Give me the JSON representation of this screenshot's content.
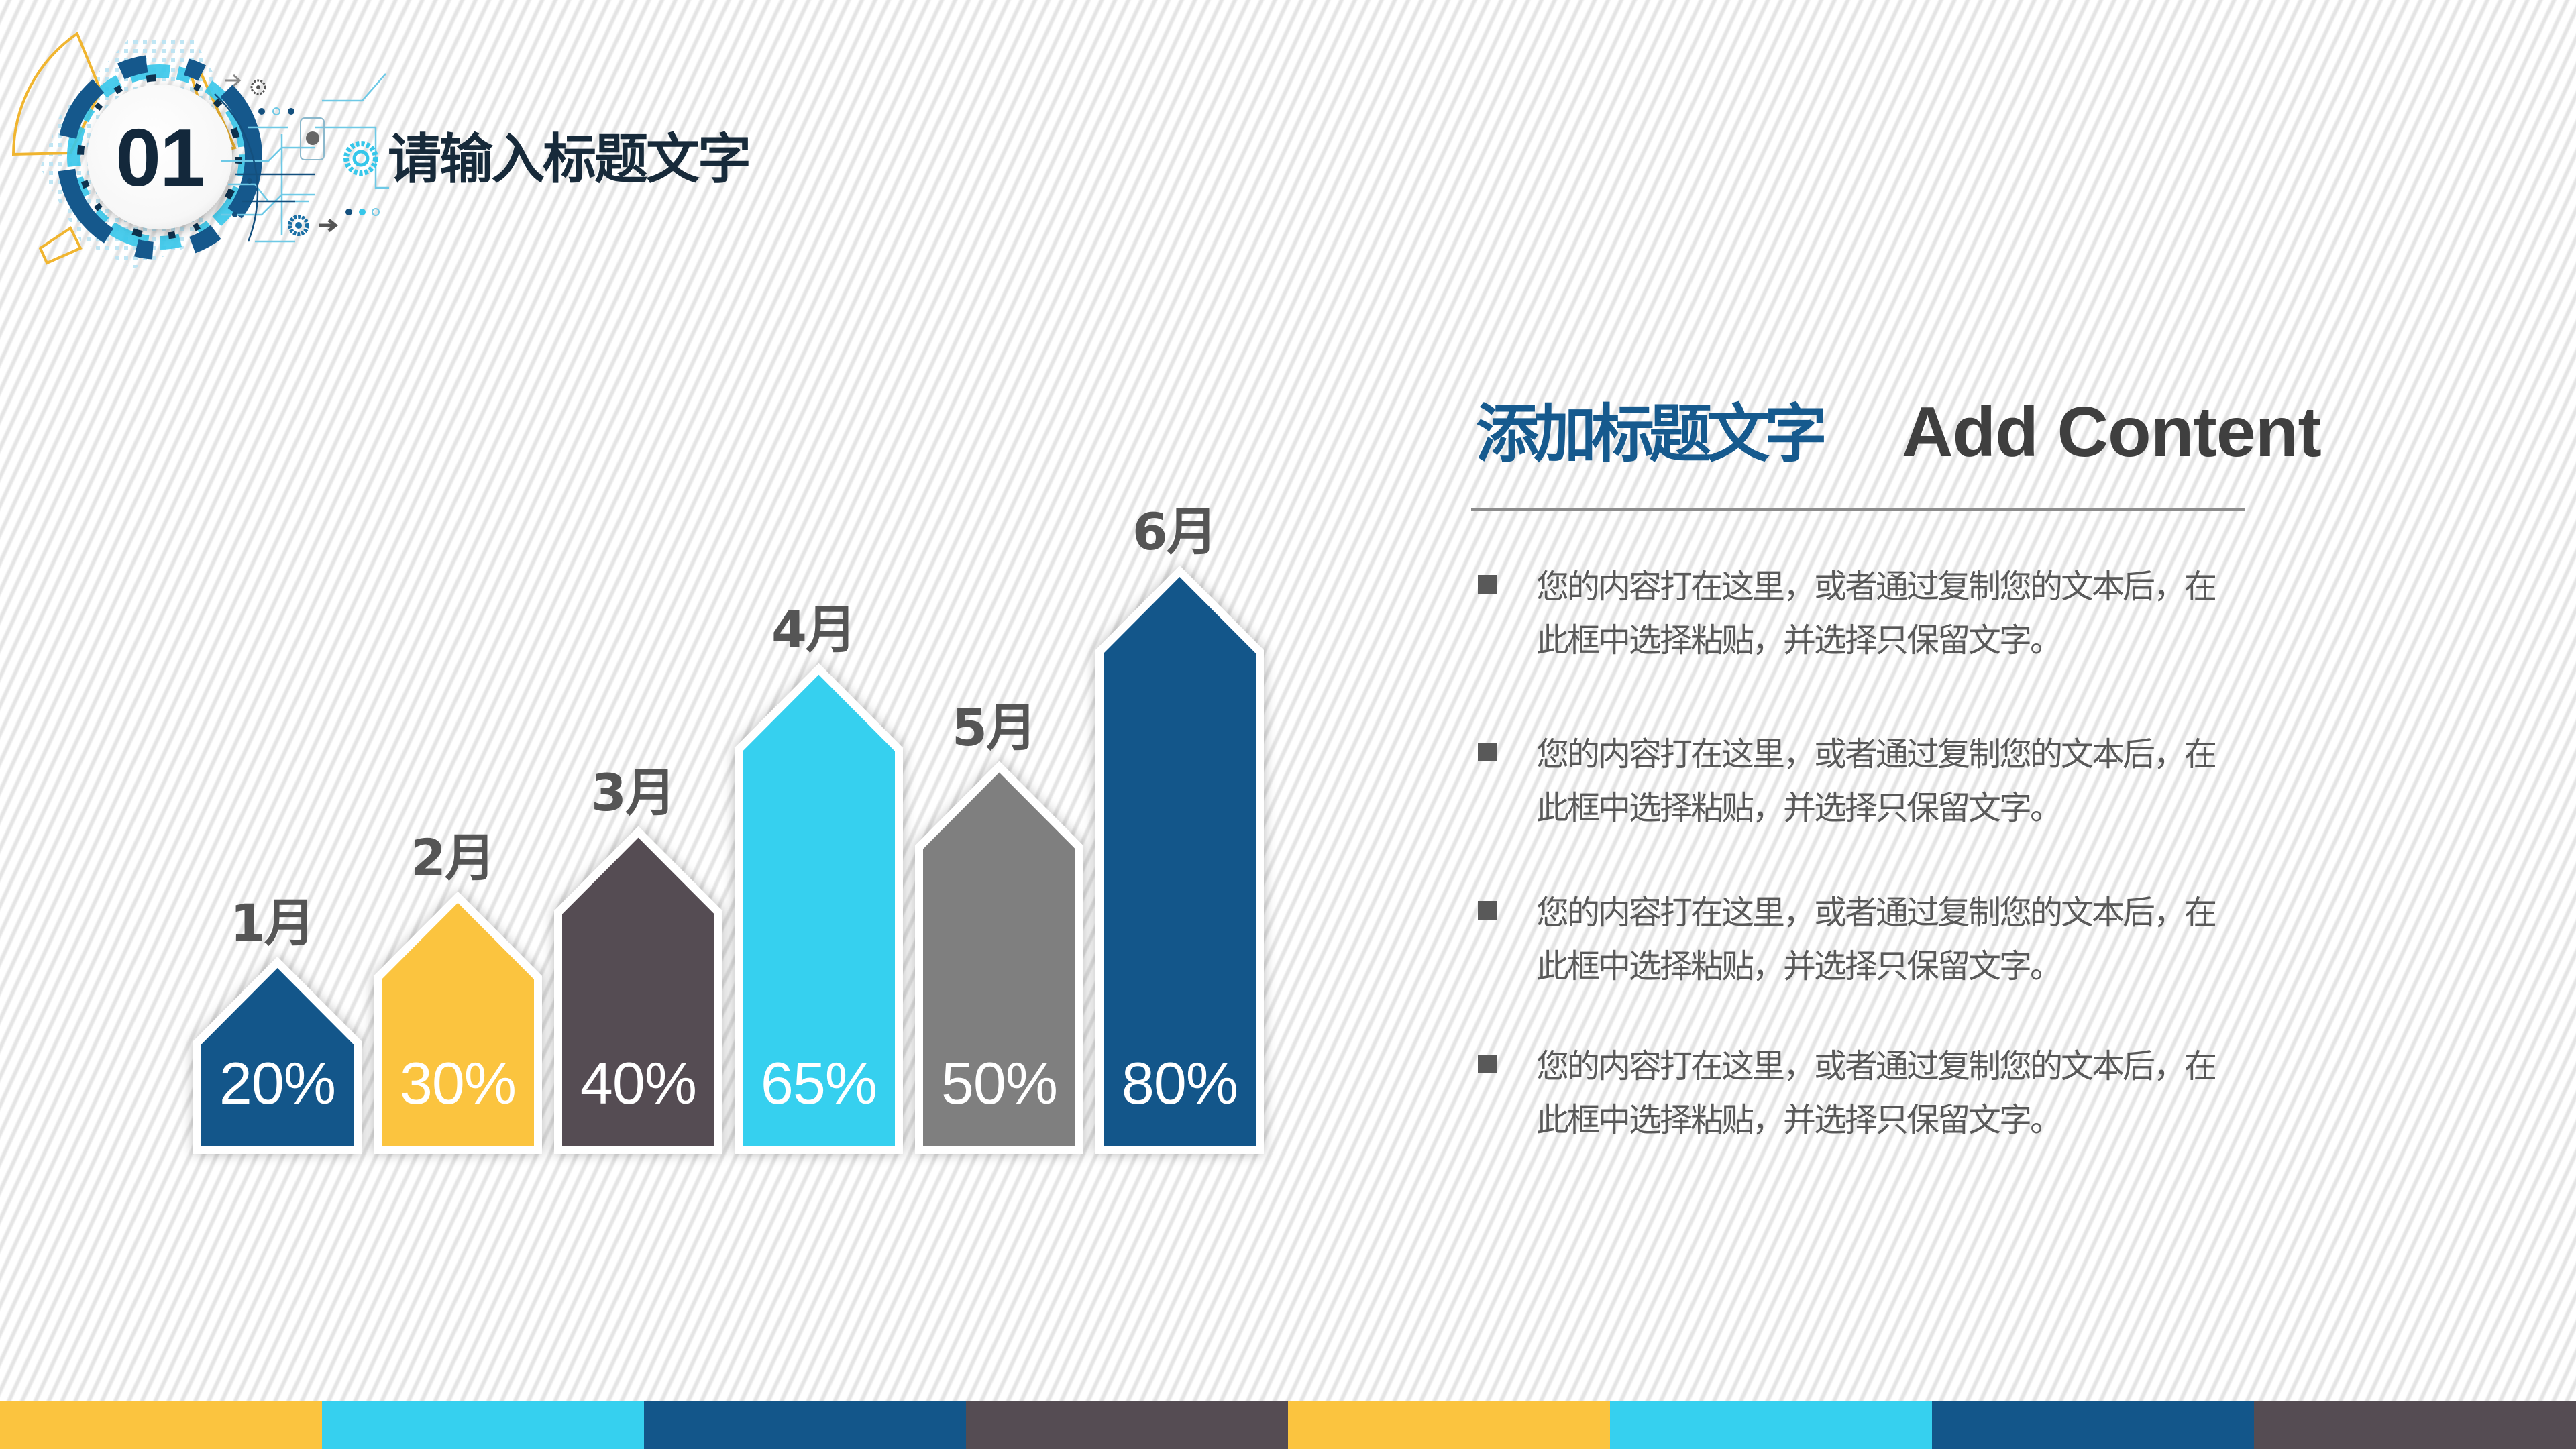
{
  "header": {
    "number": "01",
    "title": "请输入标题文字"
  },
  "chart_data": {
    "type": "bar",
    "title": "",
    "xlabel": "",
    "ylabel": "",
    "categories": [
      "1月",
      "2月",
      "3月",
      "4月",
      "5月",
      "6月"
    ],
    "values": [
      20,
      30,
      40,
      65,
      50,
      80
    ],
    "value_labels": [
      "20%",
      "30%",
      "40%",
      "65%",
      "50%",
      "80%"
    ],
    "unit": "%",
    "bar_shape": "arrow-up (pentagon)",
    "colors": [
      "#13568a",
      "#fbc43f",
      "#554c53",
      "#36d0ef",
      "#7f7f7f",
      "#13568a"
    ],
    "grid": false,
    "legend": null,
    "ylim": [
      0,
      100
    ]
  },
  "bars": [
    {
      "month": "1月",
      "pct": "20%",
      "color": "#13568a"
    },
    {
      "month": "2月",
      "pct": "30%",
      "color": "#fbc43f"
    },
    {
      "month": "3月",
      "pct": "40%",
      "color": "#554c53"
    },
    {
      "month": "4月",
      "pct": "65%",
      "color": "#36d0ef"
    },
    {
      "month": "5月",
      "pct": "50%",
      "color": "#7f7f7f"
    },
    {
      "month": "6月",
      "pct": "80%",
      "color": "#13568a"
    }
  ],
  "panel": {
    "title_cn": "添加标题文字",
    "title_en": "Add Content",
    "title_cn_color": "#165a8e",
    "bullets": [
      {
        "line1": "您的内容打在这里，或者通过复制您的文本后，在",
        "line2": "此框中选择粘贴，并选择只保留文字。"
      },
      {
        "line1": "您的内容打在这里，或者通过复制您的文本后，在",
        "line2": "此框中选择粘贴，并选择只保留文字。"
      },
      {
        "line1": "您的内容打在这里，或者通过复制您的文本后，在",
        "line2": "此框中选择粘贴，并选择只保留文字。"
      },
      {
        "line1": "您的内容打在这里，或者通过复制您的文本后，在",
        "line2": "此框中选择粘贴，并选择只保留文字。"
      }
    ]
  },
  "theme": {
    "strip_colors": [
      "#fbc43f",
      "#36d0ef",
      "#13568a",
      "#554c53",
      "#fbc43f",
      "#36d0ef",
      "#13568a",
      "#554c53"
    ]
  }
}
